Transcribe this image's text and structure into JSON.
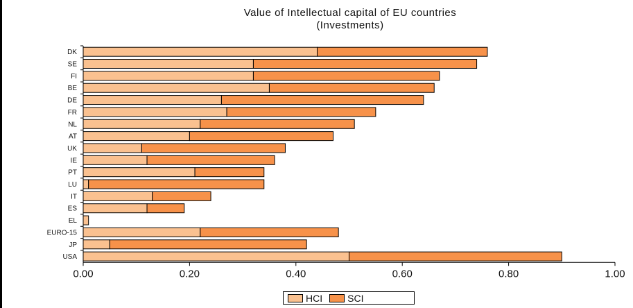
{
  "chart_data": {
    "type": "bar",
    "orientation": "horizontal",
    "stacked": true,
    "title": "Value of Intellectual capital of EU countries",
    "subtitle": "(Investments)",
    "categories": [
      "DK",
      "SE",
      "FI",
      "BE",
      "DE",
      "FR",
      "NL",
      "AT",
      "UK",
      "IE",
      "PT",
      "LU",
      "IT",
      "ES",
      "EL",
      "EURO-15",
      "JP",
      "USA"
    ],
    "series": [
      {
        "name": "HCI",
        "color": "#fac190",
        "values": [
          0.44,
          0.32,
          0.32,
          0.35,
          0.26,
          0.27,
          0.22,
          0.2,
          0.11,
          0.12,
          0.21,
          0.01,
          0.13,
          0.12,
          0.01,
          0.22,
          0.05,
          0.5
        ]
      },
      {
        "name": "SCI",
        "color": "#f7924a",
        "values": [
          0.32,
          0.42,
          0.35,
          0.31,
          0.38,
          0.28,
          0.29,
          0.27,
          0.27,
          0.24,
          0.13,
          0.33,
          0.11,
          0.07,
          0.0,
          0.26,
          0.37,
          0.4
        ]
      }
    ],
    "xlim": [
      0,
      1.0
    ],
    "xticks": [
      "0.00",
      "0.20",
      "0.40",
      "0.60",
      "0.80",
      "1.00"
    ],
    "legend_position": "bottom",
    "grid": false
  }
}
